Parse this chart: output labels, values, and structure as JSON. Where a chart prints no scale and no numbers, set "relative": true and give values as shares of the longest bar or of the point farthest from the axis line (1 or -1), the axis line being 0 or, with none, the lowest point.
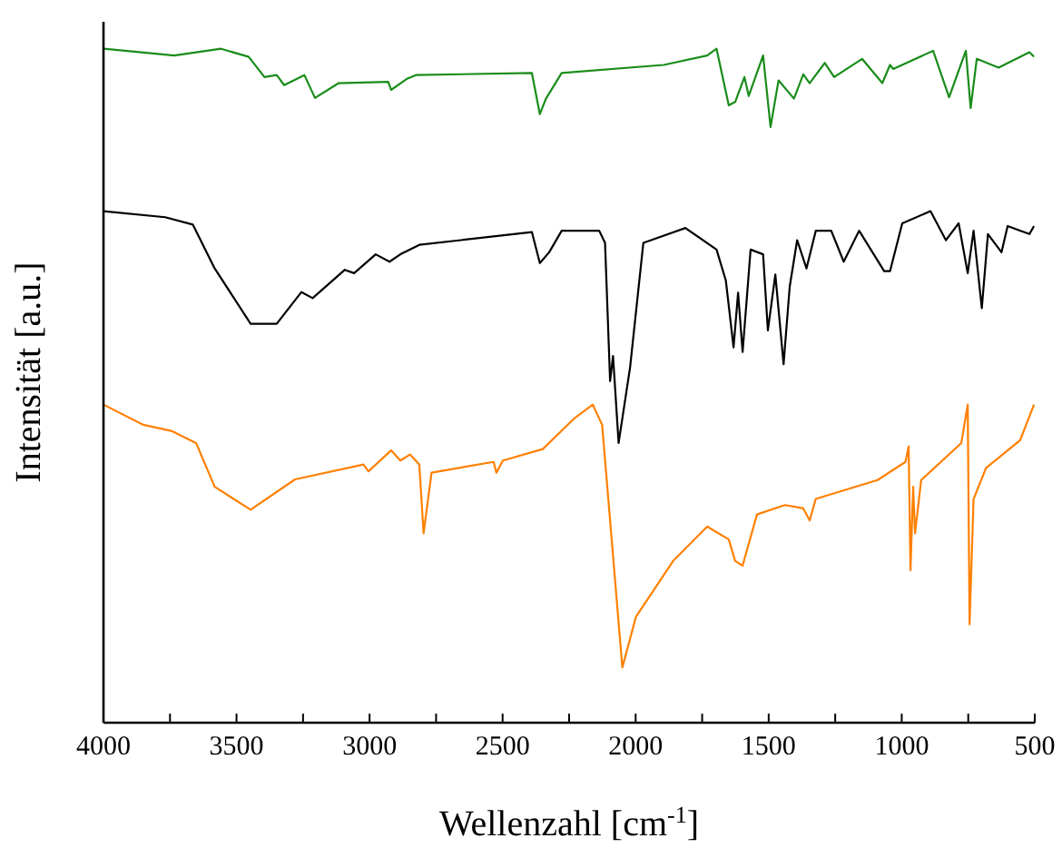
{
  "chart_data": {
    "type": "line",
    "relative": true,
    "xlabel": "Wellenzahl [cm$^{-1}$]",
    "ylabel": "Intensität [a.u.]",
    "xlim": [
      4000,
      500
    ],
    "xticks": [
      4000,
      {
        "value": 3750,
        "label": null
      },
      3500,
      {
        "value": 3250,
        "label": null
      },
      3000,
      {
        "value": 2750,
        "label": null
      },
      2500,
      {
        "value": 2250,
        "label": null
      },
      2000,
      {
        "value": 1750,
        "label": null
      },
      1500,
      {
        "value": 1250,
        "label": null
      },
      1000,
      {
        "value": 750,
        "label": null
      },
      500
    ],
    "grid": false,
    "marker": "none",
    "line_style": "solid",
    "series": [
      {
        "color": "#1a8c1a",
        "x": [
          4000,
          3734,
          3558,
          3454,
          3395,
          3349,
          3321,
          3245,
          3205,
          3116,
          2930,
          2919,
          2861,
          2826,
          2390,
          2360,
          2337,
          2278,
          1894,
          1731,
          1696,
          1650,
          1626,
          1591,
          1575,
          1521,
          1493,
          1463,
          1405,
          1370,
          1346,
          1289,
          1254,
          1149,
          1073,
          1044,
          1032,
          882,
          822,
          759,
          741,
          718,
          636,
          520,
          503
        ],
        "values": [
          1.0,
          0.99,
          1.0,
          0.988,
          0.958,
          0.961,
          0.946,
          0.961,
          0.927,
          0.949,
          0.951,
          0.939,
          0.955,
          0.961,
          0.964,
          0.903,
          0.926,
          0.964,
          0.976,
          0.99,
          1.0,
          0.916,
          0.921,
          0.958,
          0.93,
          0.99,
          0.884,
          0.953,
          0.926,
          0.962,
          0.949,
          0.979,
          0.958,
          0.985,
          0.949,
          0.976,
          0.97,
          0.997,
          0.928,
          0.997,
          0.912,
          0.985,
          0.972,
          0.995,
          0.988
        ]
      },
      {
        "color": "#000000",
        "x": [
          4000,
          3768,
          3664,
          3582,
          3447,
          3349,
          3256,
          3214,
          3093,
          3058,
          2977,
          2925,
          2884,
          2813,
          2390,
          2360,
          2325,
          2278,
          2137,
          2115,
          2096,
          2085,
          2064,
          2021,
          1971,
          1813,
          1696,
          1661,
          1632,
          1615,
          1598,
          1568,
          1521,
          1503,
          1475,
          1444,
          1421,
          1393,
          1358,
          1323,
          1265,
          1218,
          1160,
          1066,
          1044,
          998,
          892,
          834,
          786,
          752,
          730,
          699,
          676,
          625,
          602,
          520,
          503
        ],
        "values": [
          0.759,
          0.75,
          0.739,
          0.674,
          0.592,
          0.592,
          0.639,
          0.63,
          0.672,
          0.667,
          0.695,
          0.684,
          0.695,
          0.709,
          0.728,
          0.682,
          0.698,
          0.73,
          0.73,
          0.712,
          0.507,
          0.544,
          0.415,
          0.527,
          0.712,
          0.734,
          0.702,
          0.656,
          0.557,
          0.638,
          0.55,
          0.702,
          0.695,
          0.582,
          0.665,
          0.532,
          0.647,
          0.716,
          0.674,
          0.73,
          0.73,
          0.684,
          0.73,
          0.67,
          0.67,
          0.741,
          0.759,
          0.716,
          0.741,
          0.667,
          0.73,
          0.615,
          0.725,
          0.698,
          0.737,
          0.725,
          0.737
        ]
      },
      {
        "color": "#ff8000",
        "x": [
          4000,
          3850,
          3745,
          3652,
          3582,
          3447,
          3280,
          3023,
          3004,
          2919,
          2884,
          2848,
          2813,
          2797,
          2767,
          2534,
          2523,
          2499,
          2349,
          2232,
          2161,
          2126,
          2050,
          1999,
          1859,
          1731,
          1650,
          1626,
          1598,
          1544,
          1439,
          1370,
          1346,
          1323,
          1091,
          986,
          974,
          967,
          957,
          950,
          927,
          776,
          752,
          745,
          730,
          683,
          555,
          503
        ],
        "values": [
          0.472,
          0.442,
          0.433,
          0.415,
          0.35,
          0.316,
          0.361,
          0.383,
          0.373,
          0.404,
          0.389,
          0.398,
          0.383,
          0.281,
          0.371,
          0.387,
          0.371,
          0.389,
          0.406,
          0.451,
          0.472,
          0.442,
          0.082,
          0.157,
          0.24,
          0.291,
          0.272,
          0.24,
          0.233,
          0.309,
          0.323,
          0.318,
          0.3,
          0.332,
          0.36,
          0.387,
          0.41,
          0.226,
          0.35,
          0.281,
          0.36,
          0.415,
          0.472,
          0.146,
          0.332,
          0.378,
          0.419,
          0.472
        ]
      }
    ]
  }
}
